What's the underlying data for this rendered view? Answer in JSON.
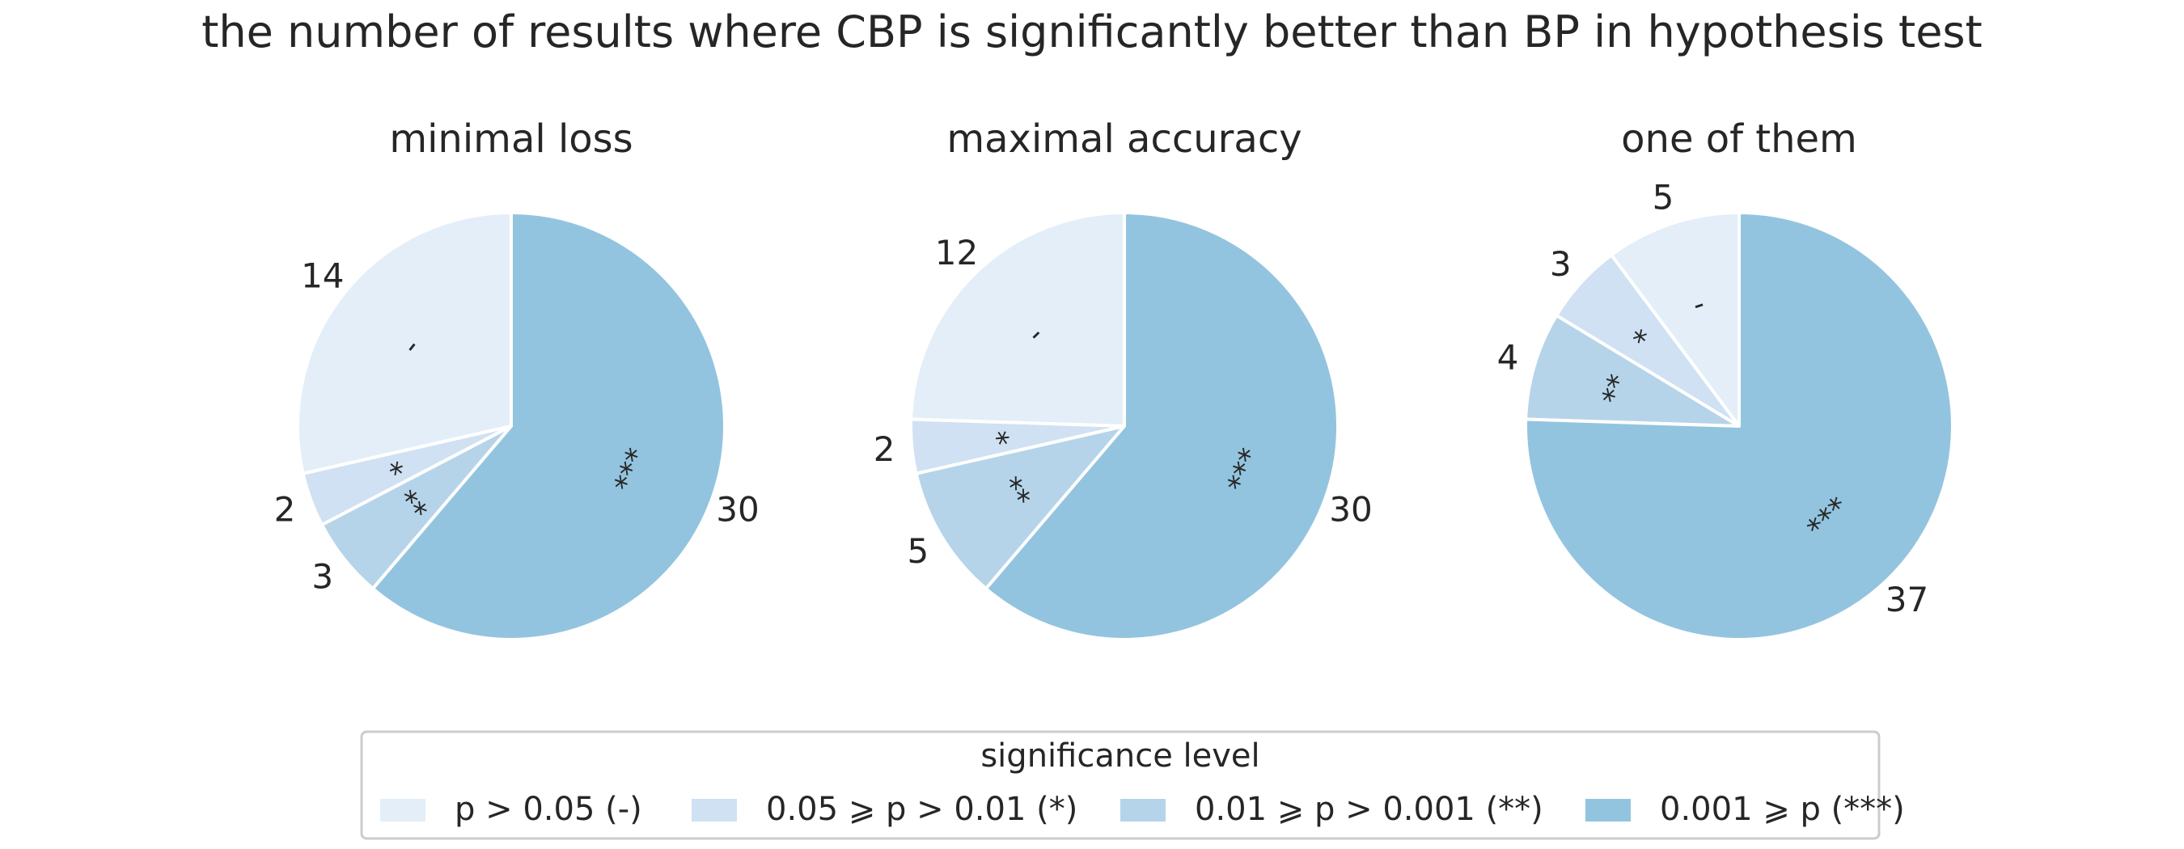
{
  "chart_data": {
    "title": "the number of results where CBP is significantly better than BP in hypothesis test",
    "charts": [
      {
        "type": "pie",
        "title": "minimal loss",
        "categories": [
          "p > 0.05 (-)",
          "0.05 ⩾ p > 0.01 (*)",
          "0.01 ⩾ p > 0.001 (**)",
          "0.001 ⩾ p (***)"
        ],
        "values": [
          14,
          2,
          3,
          30
        ],
        "markers": [
          "-",
          "*",
          "**",
          "***"
        ]
      },
      {
        "type": "pie",
        "title": "maximal accuracy",
        "categories": [
          "p > 0.05 (-)",
          "0.05 ⩾ p > 0.01 (*)",
          "0.01 ⩾ p > 0.001 (**)",
          "0.001 ⩾ p (***)"
        ],
        "values": [
          12,
          2,
          5,
          30
        ],
        "markers": [
          "-",
          "*",
          "**",
          "***"
        ]
      },
      {
        "type": "pie",
        "title": "one of them",
        "categories": [
          "p > 0.05 (-)",
          "0.05 ⩾ p > 0.01 (*)",
          "0.01 ⩾ p > 0.001 (**)",
          "0.001 ⩾ p (***)"
        ],
        "values": [
          5,
          3,
          4,
          37
        ],
        "markers": [
          "-",
          "*",
          "**",
          "***"
        ]
      }
    ],
    "legend": {
      "title": "significance level",
      "placement": "bottom-center",
      "entries": [
        "p > 0.05 (-)",
        "0.05 ⩾ p > 0.01 (*)",
        "0.01 ⩾ p > 0.001 (**)",
        "0.001 ⩾ p (***)"
      ]
    },
    "colors": [
      "#e3eef8",
      "#cfe1f2",
      "#b5d4e9",
      "#93c4df"
    ],
    "start_angle": "12 o'clock, counter-clockwise"
  }
}
